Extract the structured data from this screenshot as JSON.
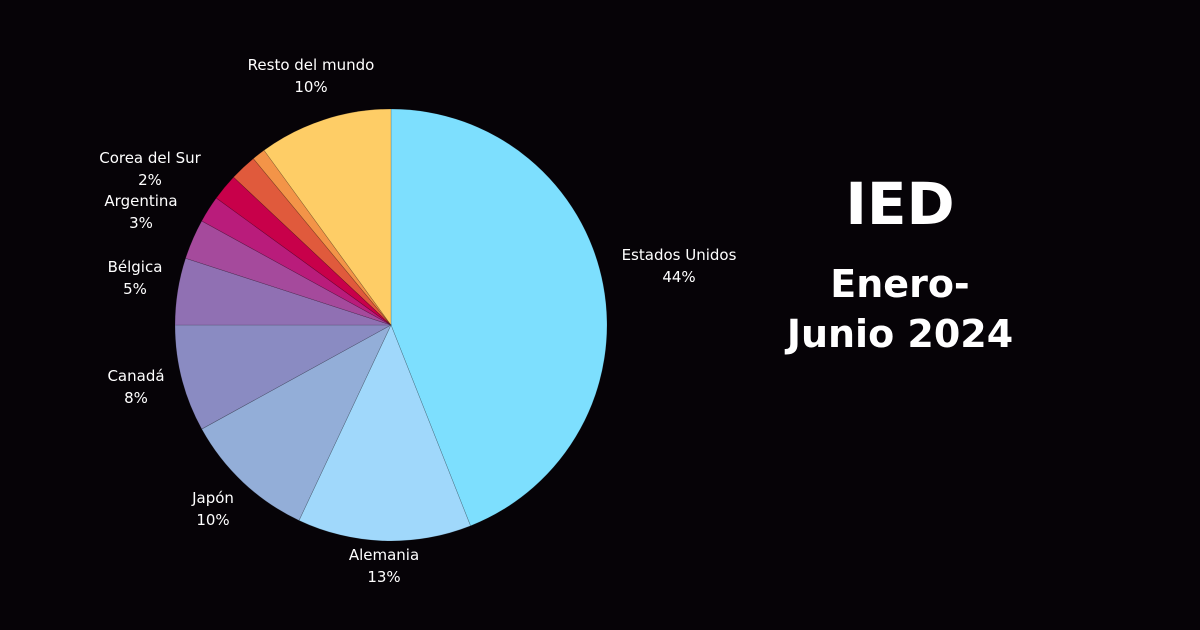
{
  "title": {
    "main": "IED",
    "line2": "Enero-",
    "line3": "Junio 2024"
  },
  "chart_data": {
    "type": "pie",
    "title": "IED Enero-Junio 2024",
    "start": "top",
    "direction": "clockwise",
    "slices": [
      {
        "label": "Estados Unidos",
        "value_label": "44%",
        "value": 44,
        "color": "#7ddffe"
      },
      {
        "label": "Alemania",
        "value_label": "13%",
        "value": 13,
        "color": "#a0d8fb"
      },
      {
        "label": "Japón",
        "value_label": "10%",
        "value": 10,
        "color": "#93aed8"
      },
      {
        "label": "Canadá",
        "value_label": "8%",
        "value": 8,
        "color": "#8a8bc2"
      },
      {
        "label": "Bélgica",
        "value_label": "5%",
        "value": 5,
        "color": "#9070b3"
      },
      {
        "label": "Argentina",
        "value_label": "3%",
        "value": 3,
        "color": "#a54a9c"
      },
      {
        "label": "Corea del Sur",
        "value_label": "2%",
        "value": 2,
        "color": "#b91c7b"
      },
      {
        "label": null,
        "value_label": null,
        "value": 2,
        "color": "#c8004a"
      },
      {
        "label": null,
        "value_label": null,
        "value": 2,
        "color": "#e05a3c"
      },
      {
        "label": null,
        "value_label": null,
        "value": 1,
        "color": "#f39448"
      },
      {
        "label": "Resto del mundo",
        "value_label": "10%",
        "value": 10,
        "color": "#fecd66"
      }
    ]
  }
}
